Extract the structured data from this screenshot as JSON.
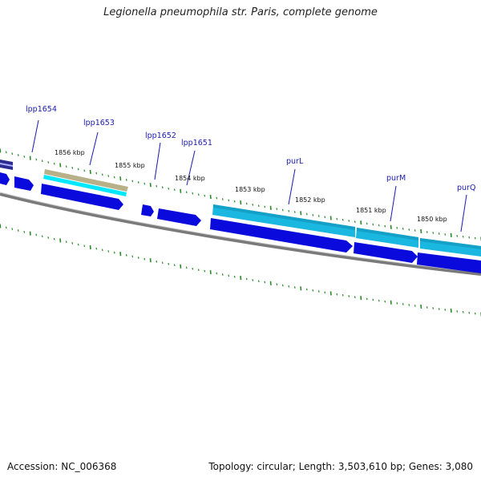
{
  "title": "Legionella pneumophila str. Paris, complete genome",
  "footer": {
    "accession": "Accession: NC_006368",
    "summary": "Topology: circular; Length: 3,503,610 bp; Genes: 3,080"
  },
  "colors": {
    "gene_blue": "#0a0adc",
    "gene_navy": "#2c2c90",
    "gene_cyan": "#1ac8e8",
    "gene_lightcyan": "#00e8ff",
    "gene_tan": "#b8b088",
    "backbone": "#888888",
    "tick_green": "#2a8a2a",
    "label_blue": "#1a1ab0"
  },
  "genes": [
    {
      "name": "lpp1654"
    },
    {
      "name": "lpp1653"
    },
    {
      "name": "lpp1652"
    },
    {
      "name": "lpp1651"
    },
    {
      "name": "purL"
    },
    {
      "name": "purM"
    },
    {
      "name": "purQ"
    }
  ],
  "ticks": [
    {
      "label": "1856 kbp"
    },
    {
      "label": "1855 kbp"
    },
    {
      "label": "1854 kbp"
    },
    {
      "label": "1853 kbp"
    },
    {
      "label": "1852 kbp"
    },
    {
      "label": "1851 kbp"
    },
    {
      "label": "1850 kbp"
    }
  ]
}
